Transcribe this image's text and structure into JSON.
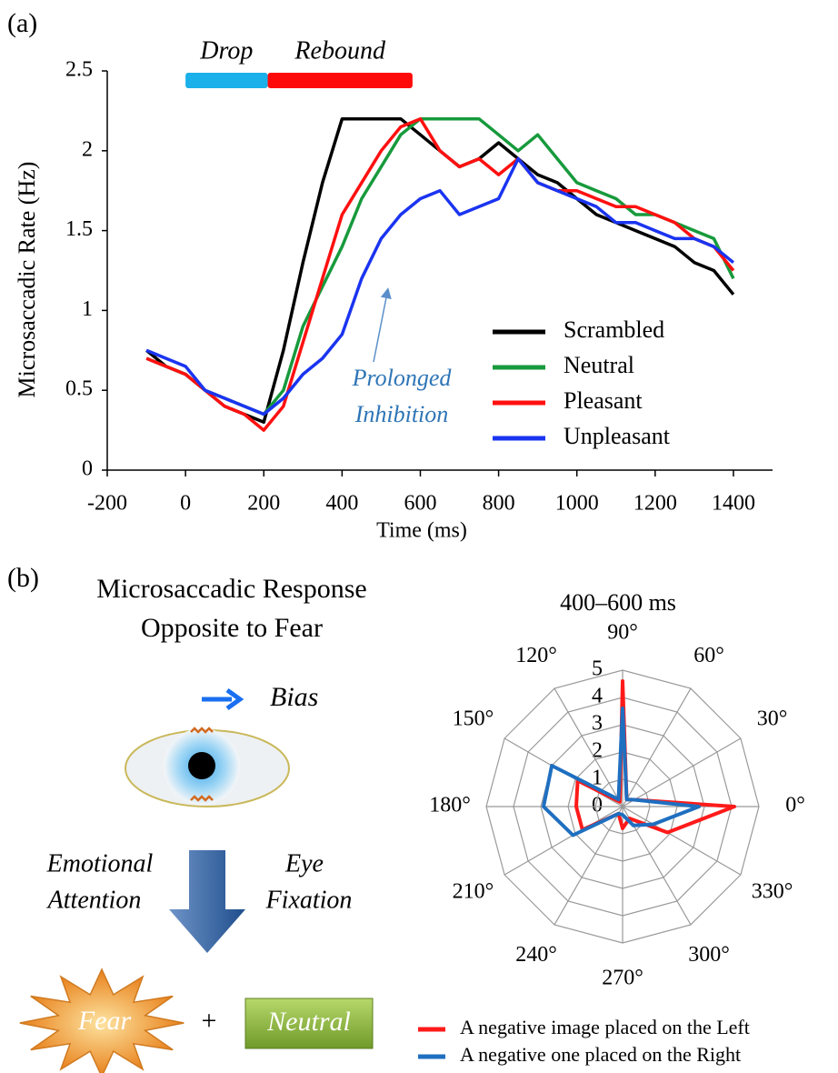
{
  "panel_labels": [
    "(a)",
    "(b)"
  ],
  "chart_data": [
    {
      "type": "line",
      "x_label": "Time (ms)",
      "y_label": "Microsaccadic  Rate (Hz)",
      "xlim": [
        -200,
        1500
      ],
      "xticks": [
        -200,
        0,
        200,
        400,
        600,
        800,
        1000,
        1200,
        1400
      ],
      "ylim": [
        0,
        2.5
      ],
      "yticks": [
        0,
        0.5,
        1,
        1.5,
        2,
        2.5
      ],
      "legend": "lower right",
      "x": [
        -100,
        -50,
        0,
        50,
        100,
        150,
        200,
        250,
        300,
        350,
        400,
        450,
        500,
        550,
        600,
        650,
        700,
        750,
        800,
        850,
        900,
        950,
        1000,
        1050,
        1100,
        1150,
        1200,
        1250,
        1300,
        1350,
        1400
      ],
      "series": [
        {
          "name": "Scrambled",
          "color": "#000000",
          "values": [
            0.75,
            0.65,
            0.6,
            0.5,
            0.4,
            0.35,
            0.3,
            0.75,
            1.3,
            1.8,
            2.2,
            2.2,
            2.2,
            2.2,
            2.1,
            2.0,
            1.9,
            1.95,
            2.05,
            1.95,
            1.85,
            1.8,
            1.7,
            1.6,
            1.55,
            1.5,
            1.45,
            1.4,
            1.3,
            1.25,
            1.1
          ]
        },
        {
          "name": "Neutral",
          "color": "#179a3c",
          "values": [
            0.7,
            0.65,
            0.6,
            0.5,
            0.45,
            0.4,
            0.35,
            0.5,
            0.9,
            1.15,
            1.4,
            1.7,
            1.9,
            2.1,
            2.2,
            2.2,
            2.2,
            2.2,
            2.1,
            2.0,
            2.1,
            1.95,
            1.8,
            1.75,
            1.7,
            1.6,
            1.6,
            1.55,
            1.5,
            1.45,
            1.2
          ]
        },
        {
          "name": "Pleasant",
          "color": "#ff1010",
          "values": [
            0.7,
            0.65,
            0.6,
            0.5,
            0.4,
            0.35,
            0.25,
            0.4,
            0.8,
            1.2,
            1.6,
            1.8,
            2.0,
            2.15,
            2.2,
            2.0,
            1.9,
            1.95,
            1.85,
            1.95,
            1.8,
            1.75,
            1.75,
            1.7,
            1.65,
            1.65,
            1.6,
            1.55,
            1.45,
            1.4,
            1.25
          ]
        },
        {
          "name": "Unpleasant",
          "color": "#1a34f0",
          "values": [
            0.75,
            0.7,
            0.65,
            0.5,
            0.45,
            0.4,
            0.35,
            0.45,
            0.6,
            0.7,
            0.85,
            1.2,
            1.45,
            1.6,
            1.7,
            1.75,
            1.6,
            1.65,
            1.7,
            1.95,
            1.8,
            1.75,
            1.7,
            1.65,
            1.55,
            1.55,
            1.5,
            1.45,
            1.45,
            1.4,
            1.3
          ]
        }
      ],
      "periods": [
        {
          "label": "Drop",
          "start": 0,
          "end": 210,
          "color": "#1ab0ea"
        },
        {
          "label": "Rebound",
          "start": 210,
          "end": 580,
          "color": "#ff0a0a"
        }
      ],
      "annotation": {
        "lines": [
          "Prolonged",
          "Inhibition"
        ],
        "color": "#2e75b6"
      }
    },
    {
      "type": "radar",
      "title": "400–600 ms",
      "categories": [
        "0°",
        "30°",
        "60°",
        "90°",
        "120°",
        "150°",
        "180°",
        "210°",
        "240°",
        "270°",
        "300°",
        "330°"
      ],
      "rlim": [
        0,
        5
      ],
      "rticks": [
        0,
        1,
        2,
        3,
        4,
        5
      ],
      "series": [
        {
          "name": "A negative image placed on the Left",
          "color": "#ff1a1a",
          "values": [
            4.1,
            0.5,
            0.3,
            4.6,
            0.2,
            1.9,
            1.7,
            1.7,
            0.3,
            0.8,
            0.5,
            1.9
          ]
        },
        {
          "name": "A negative one placed on the Right",
          "color": "#1f6fc0",
          "values": [
            2.8,
            0.5,
            0.3,
            3.6,
            0.3,
            3.0,
            2.9,
            2.1,
            0.3,
            0.3,
            0.8,
            1.3
          ]
        }
      ]
    }
  ],
  "diagram": {
    "title_lines": [
      "Microsaccadic Response",
      "Opposite to Fear"
    ],
    "bias": "Bias",
    "left_label": [
      "Emotional",
      "Attention"
    ],
    "right_label": [
      "Eye",
      "Fixation"
    ],
    "fear": "Fear",
    "plus": "+",
    "neutral": "Neutral"
  }
}
